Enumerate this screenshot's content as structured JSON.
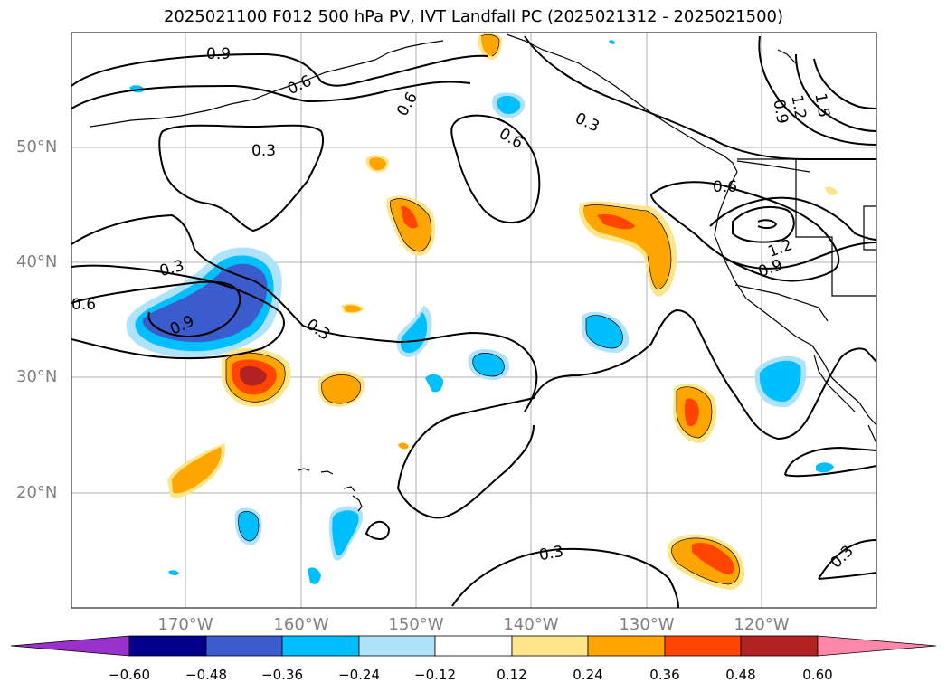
{
  "title": "2025021100 F012 500 hPa PV, IVT Landfall PC (2025021312 - 2025021500)",
  "lat_labels": [
    "50°N",
    "40°N",
    "30°N",
    "20°N"
  ],
  "lon_labels": [
    "170°W",
    "160°W",
    "150°W",
    "140°W",
    "130°W",
    "120°W"
  ],
  "contour_labels": [
    "0.9",
    "0.6",
    "0.3",
    "0.6",
    "0.6",
    "0.3",
    "0.3",
    "0.6",
    "0.9",
    "0.3",
    "0.3",
    "0.6",
    "1.2",
    "0.9",
    "0.9",
    "1.2",
    "1.5",
    "0.3"
  ],
  "colorbar": {
    "ticks": [
      "−0.60",
      "−0.48",
      "−0.36",
      "−0.24",
      "−0.12",
      "0.12",
      "0.24",
      "0.36",
      "0.48",
      "0.60"
    ],
    "colors": [
      "#9932cc",
      "#00008b",
      "#3a5ccd",
      "#00bfff",
      "#aee3fb",
      "#ffffff",
      "#fde68a",
      "#ffa500",
      "#ff4500",
      "#b22222",
      "#ff88aa"
    ]
  },
  "map_colors": {
    "pos_light": "#fde68a",
    "pos_mid": "#ffa500",
    "pos_strong": "#ff4500",
    "pos_max": "#b22222",
    "neg_light": "#aee3fb",
    "neg_mid": "#00bfff",
    "neg_strong": "#3a5ccd"
  }
}
